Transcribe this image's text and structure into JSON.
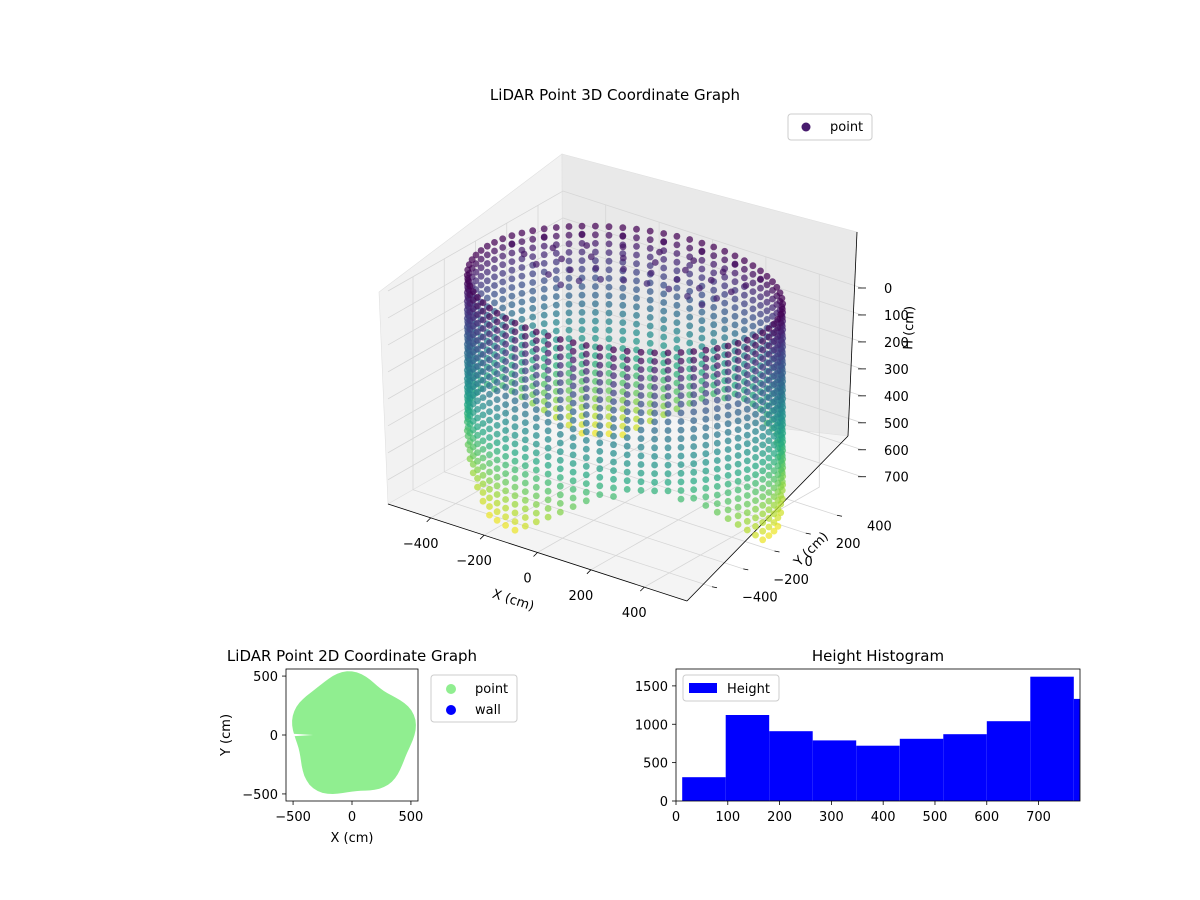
{
  "chart_data": [
    {
      "type": "scatter3d",
      "title": "LiDAR Point 3D Coordinate Graph",
      "xlabel": "X (cm)",
      "ylabel": "Y (cm)",
      "zlabel": "H (cm)",
      "xticks": [
        "−400",
        "−200",
        "0",
        "200",
        "400"
      ],
      "yticks": [
        "−400",
        "−200",
        "0",
        "200",
        "400"
      ],
      "zticks": [
        "0",
        "100",
        "200",
        "300",
        "400",
        "500",
        "600",
        "700"
      ],
      "xlim": [
        -560,
        560
      ],
      "ylim": [
        -560,
        560
      ],
      "zlim": [
        0,
        790
      ],
      "z_axis_inverted": true,
      "colormap": "viridis",
      "legend": [
        "point"
      ],
      "legend_position": "upper-right",
      "legend_color": "#481c6e",
      "shape": "cylindrical wall of points, radius about 520 cm, heights 0 to 780 cm",
      "grid": true
    },
    {
      "type": "scatter",
      "title": "LiDAR Point 2D Coordinate Graph",
      "xlabel": "X (cm)",
      "ylabel": "Y (cm)",
      "xticks": [
        "−500",
        "0",
        "500"
      ],
      "yticks": [
        "500",
        "0",
        "−500"
      ],
      "xlim": [
        -560,
        560
      ],
      "ylim": [
        -560,
        560
      ],
      "series": [
        {
          "name": "point",
          "color": "#90ee90",
          "shape": "filled disc, radius about 520 cm"
        },
        {
          "name": "wall",
          "color": "#0000ff"
        }
      ],
      "legend_position": "outside-right",
      "grid": false
    },
    {
      "type": "bar",
      "title": "Height Histogram",
      "xticks": [
        "0",
        "100",
        "200",
        "300",
        "400",
        "500",
        "600",
        "700"
      ],
      "yticks": [
        "0",
        "500",
        "1000",
        "1500"
      ],
      "xlim": [
        0,
        780
      ],
      "ylim": [
        0,
        1720
      ],
      "bin_edges": [
        12,
        96,
        180,
        264,
        348,
        432,
        516,
        600,
        684,
        768,
        780
      ],
      "values": [
        310,
        1120,
        910,
        790,
        720,
        810,
        870,
        1040,
        1620,
        1330
      ],
      "color": "#0000ff",
      "legend": [
        "Height"
      ],
      "legend_position": "upper-left",
      "grid": false
    }
  ]
}
